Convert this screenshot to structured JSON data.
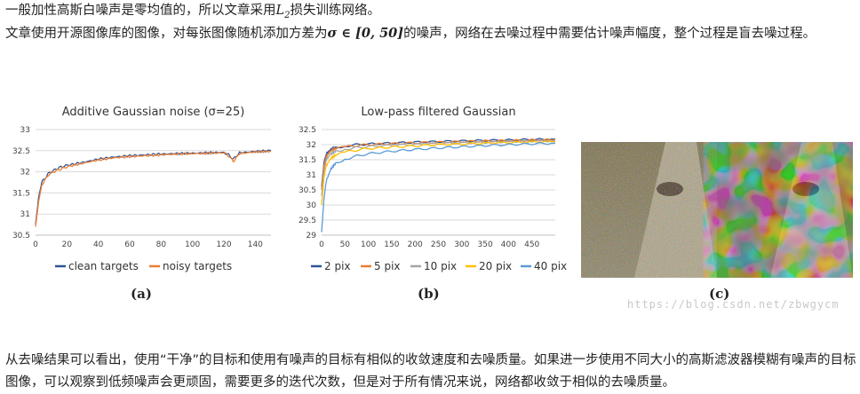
{
  "paragraphs": {
    "p1_text": "一般加性高斯白噪声是零均值的，所以文章采用",
    "p1_math": "L",
    "p1_sub": "2",
    "p1_tail": "损失训练网络。",
    "p2_text": "文章使用开源图像库的图像，对每张图像随机添加方差为",
    "p2_math": "σ ∈ [0, 50]",
    "p2_tail": "的噪声，网络在去噪过程中需要估计噪声幅度，整个过程是盲去噪过程。",
    "bottom": "从去噪结果可以看出，使用“干净”的目标和使用有噪声的目标有相似的收敛速度和去噪质量。如果进一步使用不同大小的高斯滤波器模糊有噪声的目标图像，可以观察到低频噪声会更顽固，需要更多的迭代次数，但是对于所有情况来说，网络都收敛于相似的去噪质量。"
  },
  "panel_labels": {
    "a": "(a)",
    "b": "(b)",
    "c": "(c)"
  },
  "watermark": "https://blog.csdn.net/zbwgycm",
  "colors": {
    "blue": "#2f5597",
    "orange": "#ed7d31",
    "gray": "#a5a5a5",
    "gold": "#ffc000",
    "lightblue": "#5b9bd5"
  },
  "chart_data": [
    {
      "type": "line",
      "title": "Additive Gaussian noise (σ=25)",
      "xlim": [
        0,
        150
      ],
      "ylim": [
        30.5,
        33
      ],
      "xticks": [
        0,
        20,
        40,
        60,
        80,
        100,
        120,
        140
      ],
      "yticks": [
        30.5,
        31,
        31.5,
        32,
        32.5,
        33
      ],
      "legend_position": "bottom",
      "grid": true,
      "x": [
        0,
        2,
        4,
        6,
        8,
        10,
        15,
        20,
        30,
        40,
        50,
        60,
        70,
        80,
        90,
        100,
        110,
        120,
        123,
        126,
        130,
        140,
        150
      ],
      "series": [
        {
          "name": "clean targets",
          "values": [
            30.75,
            31.4,
            31.75,
            31.85,
            31.95,
            32.0,
            32.1,
            32.15,
            32.22,
            32.3,
            32.35,
            32.38,
            32.4,
            32.42,
            32.43,
            32.44,
            32.45,
            32.46,
            32.4,
            32.3,
            32.45,
            32.48,
            32.5
          ]
        },
        {
          "name": "noisy targets",
          "values": [
            30.7,
            31.3,
            31.7,
            31.8,
            31.92,
            31.98,
            32.05,
            32.12,
            32.2,
            32.28,
            32.33,
            32.36,
            32.38,
            32.4,
            32.42,
            32.43,
            32.44,
            32.45,
            32.38,
            32.25,
            32.43,
            32.47,
            32.49
          ]
        }
      ]
    },
    {
      "type": "line",
      "title": "Low-pass filtered Gaussian",
      "xlim": [
        0,
        500
      ],
      "ylim": [
        29,
        32.5
      ],
      "xticks": [
        0,
        50,
        100,
        150,
        200,
        250,
        300,
        350,
        400,
        450
      ],
      "yticks": [
        29,
        29.5,
        30,
        30.5,
        31,
        31.5,
        32,
        32.5
      ],
      "legend_position": "bottom",
      "grid": true,
      "x": [
        0,
        5,
        10,
        20,
        30,
        50,
        75,
        100,
        150,
        200,
        250,
        300,
        350,
        400,
        450,
        500
      ],
      "series": [
        {
          "name": "2 pix",
          "values": [
            30.6,
            31.4,
            31.7,
            31.85,
            31.9,
            31.95,
            32.0,
            32.02,
            32.05,
            32.08,
            32.1,
            32.12,
            32.14,
            32.15,
            32.17,
            32.18
          ]
        },
        {
          "name": "5 pix",
          "values": [
            30.5,
            31.3,
            31.6,
            31.8,
            31.87,
            31.92,
            31.97,
            32.0,
            32.03,
            32.06,
            32.08,
            32.1,
            32.12,
            32.13,
            32.15,
            32.16
          ]
        },
        {
          "name": "10 pix",
          "values": [
            30.3,
            31.1,
            31.5,
            31.7,
            31.78,
            31.85,
            31.9,
            31.94,
            31.98,
            32.01,
            32.04,
            32.06,
            32.08,
            32.1,
            32.12,
            32.13
          ]
        },
        {
          "name": "20 pix",
          "values": [
            30.0,
            30.9,
            31.3,
            31.55,
            31.65,
            31.75,
            31.82,
            31.87,
            31.92,
            31.96,
            32.0,
            32.02,
            32.05,
            32.07,
            32.09,
            32.1
          ]
        },
        {
          "name": "40 pix",
          "values": [
            29.1,
            30.2,
            30.8,
            31.2,
            31.38,
            31.52,
            31.62,
            31.7,
            31.78,
            31.84,
            31.89,
            31.93,
            31.97,
            32.0,
            32.03,
            32.05
          ]
        }
      ]
    }
  ]
}
